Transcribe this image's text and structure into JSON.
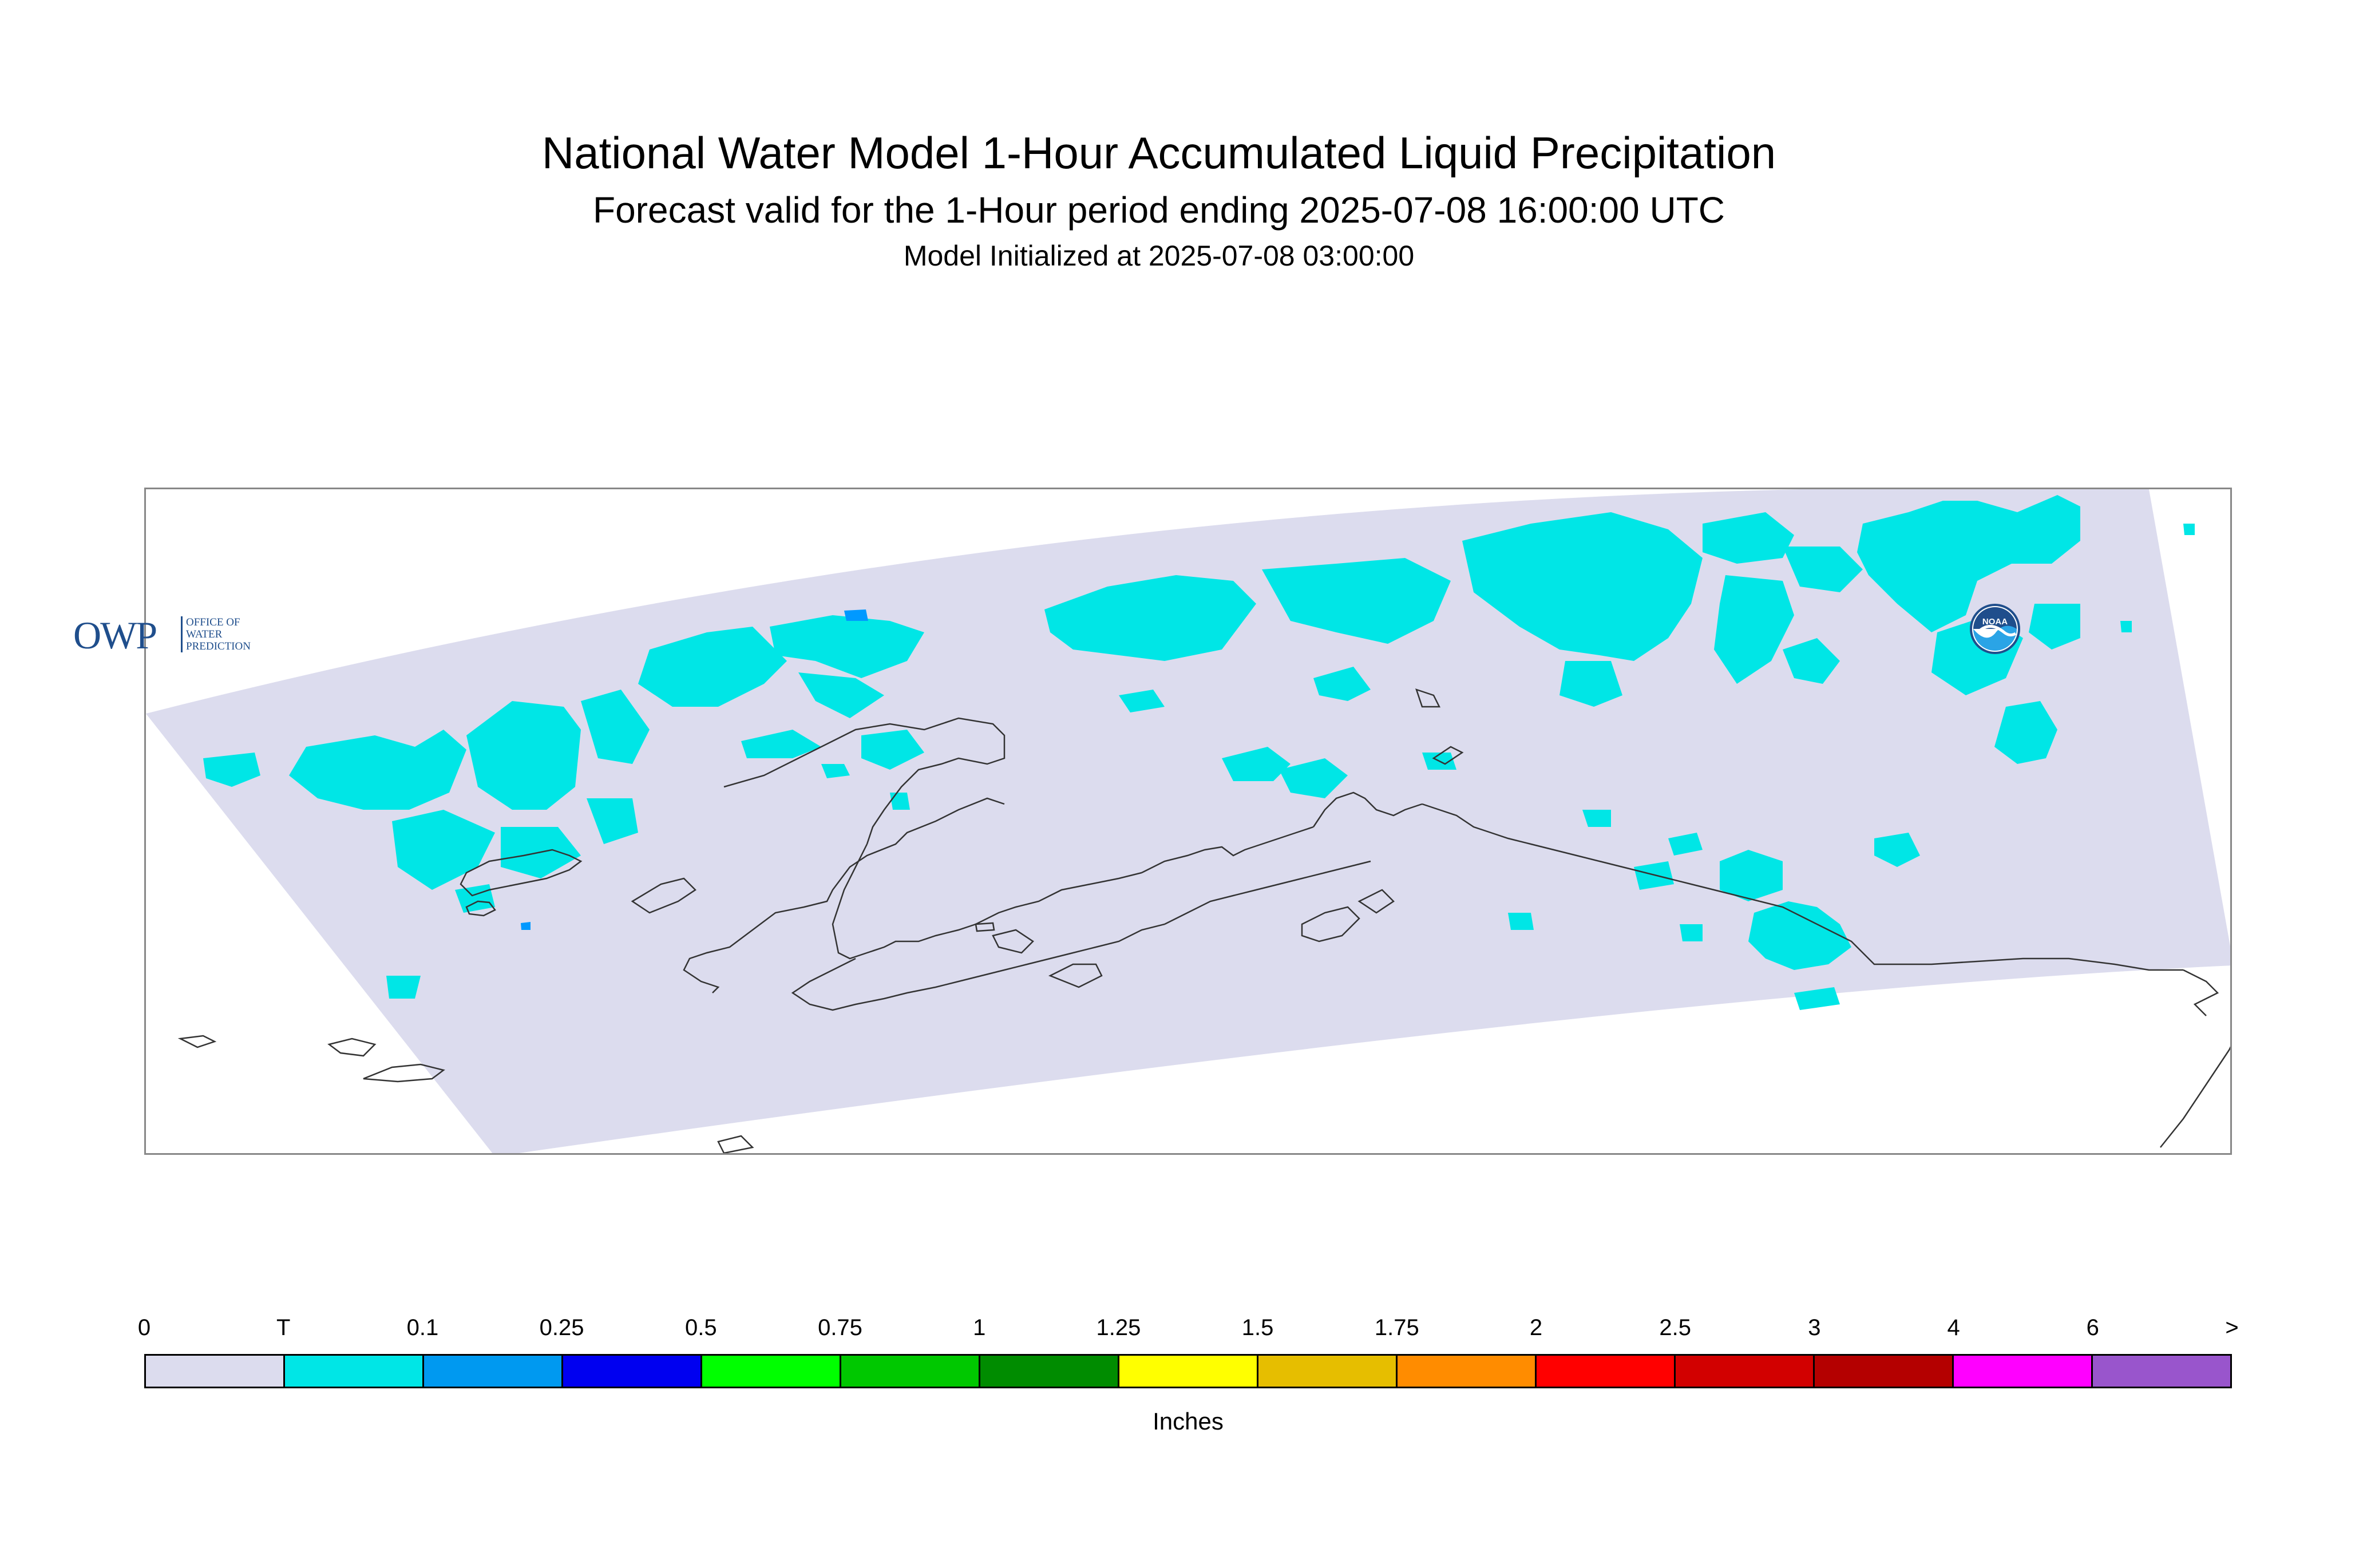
{
  "title": "National Water Model 1-Hour Accumulated Liquid Precipitation",
  "subtitle": "Forecast valid for the 1-Hour period ending 2025-07-08 16:00:00 UTC",
  "init_line": "Model Initialized at 2025-07-08 03:00:00",
  "map": {
    "region": "Alaska",
    "domain_fill": "#dcdcee",
    "coast_color": "#333333",
    "precip_color": "#00e6e6",
    "precip_heavy_color": "#0099ff"
  },
  "logos": {
    "owp_letters": "OWP",
    "owp_text": "OFFICE OF\nWATER\nPREDICTION",
    "noaa_text": "NOAA"
  },
  "legend": {
    "units": "Inches",
    "labels": [
      "0",
      "T",
      "0.1",
      "0.25",
      "0.5",
      "0.75",
      "1",
      "1.25",
      "1.5",
      "1.75",
      "2",
      "2.5",
      "3",
      "4",
      "6",
      ">"
    ],
    "colors": [
      "#dcdcee",
      "#00e6e6",
      "#0099f0",
      "#0000f0",
      "#00ff00",
      "#00c800",
      "#008c00",
      "#ffff00",
      "#e6be00",
      "#ff8c00",
      "#ff0000",
      "#d20000",
      "#b40000",
      "#ff00ff",
      "#9955cc"
    ]
  }
}
